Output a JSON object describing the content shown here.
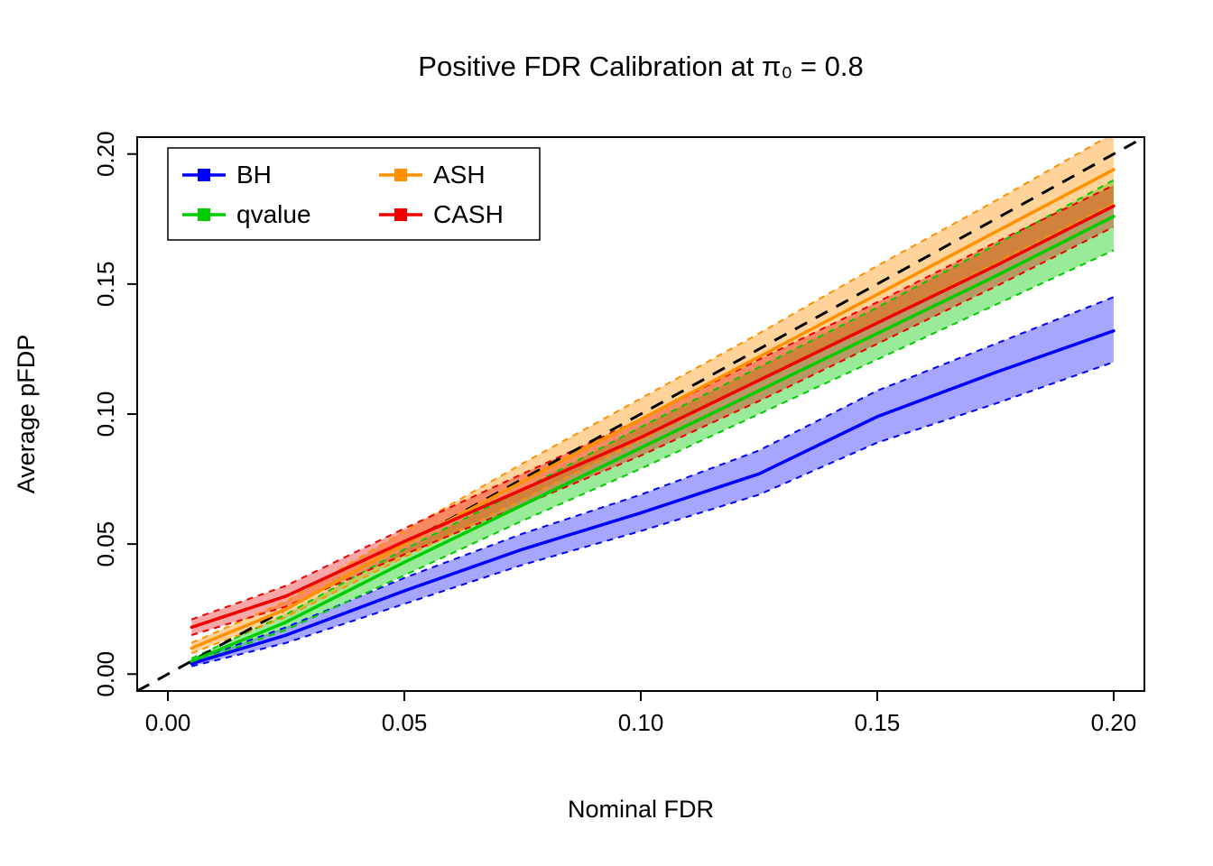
{
  "chart_data": {
    "type": "line",
    "title": "Positive FDR Calibration at π₀ = 0.8",
    "xlabel": "Nominal FDR",
    "ylabel": "Average pFDP",
    "grid": false,
    "xlim": [
      -0.0065,
      0.2065
    ],
    "ylim": [
      -0.0065,
      0.2065
    ],
    "x_ticks": [
      0.0,
      0.05,
      0.1,
      0.15,
      0.2
    ],
    "y_ticks": [
      0.0,
      0.05,
      0.1,
      0.15,
      0.2
    ],
    "x_tick_labels": [
      "0.00",
      "0.05",
      "0.10",
      "0.15",
      "0.20"
    ],
    "y_tick_labels": [
      "0.00",
      "0.05",
      "0.10",
      "0.15",
      "0.20"
    ],
    "legend": {
      "position": "top-left",
      "columns": 2,
      "order": "column-major"
    },
    "identity_line": {
      "style": "dashed",
      "color": "#000000",
      "from": [
        0,
        0
      ],
      "to": [
        0.2,
        0.2
      ]
    },
    "x": [
      0.005,
      0.025,
      0.05,
      0.075,
      0.1,
      0.125,
      0.15,
      0.175,
      0.2
    ],
    "series": [
      {
        "name": "BH",
        "color": "#0000FF",
        "band_color": "rgba(0,0,255,0.35)",
        "mean": [
          0.004,
          0.015,
          0.032,
          0.048,
          0.062,
          0.077,
          0.099,
          0.116,
          0.132
        ],
        "lower": [
          0.003,
          0.012,
          0.027,
          0.042,
          0.055,
          0.069,
          0.089,
          0.104,
          0.12
        ],
        "upper": [
          0.005,
          0.018,
          0.037,
          0.054,
          0.069,
          0.086,
          0.109,
          0.127,
          0.145
        ]
      },
      {
        "name": "qvalue",
        "color": "#00CC00",
        "band_color": "rgba(0,205,0,0.40)",
        "mean": [
          0.005,
          0.02,
          0.043,
          0.065,
          0.087,
          0.109,
          0.131,
          0.153,
          0.176
        ],
        "lower": [
          0.004,
          0.017,
          0.038,
          0.059,
          0.079,
          0.1,
          0.121,
          0.142,
          0.163
        ],
        "upper": [
          0.006,
          0.023,
          0.048,
          0.071,
          0.095,
          0.118,
          0.141,
          0.165,
          0.19
        ]
      },
      {
        "name": "ASH",
        "color": "#FF9100",
        "band_color": "rgba(255,145,0,0.40)",
        "mean": [
          0.01,
          0.025,
          0.05,
          0.074,
          0.098,
          0.122,
          0.146,
          0.17,
          0.194
        ],
        "lower": [
          0.008,
          0.022,
          0.045,
          0.067,
          0.09,
          0.113,
          0.135,
          0.158,
          0.181
        ],
        "upper": [
          0.012,
          0.028,
          0.055,
          0.081,
          0.106,
          0.131,
          0.157,
          0.182,
          0.208
        ]
      },
      {
        "name": "CASH",
        "color": "#EE0000",
        "band_color": "rgba(238,0,0,0.35)",
        "mean": [
          0.018,
          0.03,
          0.051,
          0.071,
          0.091,
          0.113,
          0.135,
          0.157,
          0.18
        ],
        "lower": [
          0.015,
          0.026,
          0.046,
          0.065,
          0.084,
          0.105,
          0.127,
          0.149,
          0.172
        ],
        "upper": [
          0.021,
          0.034,
          0.056,
          0.077,
          0.098,
          0.121,
          0.143,
          0.166,
          0.188
        ]
      }
    ]
  }
}
